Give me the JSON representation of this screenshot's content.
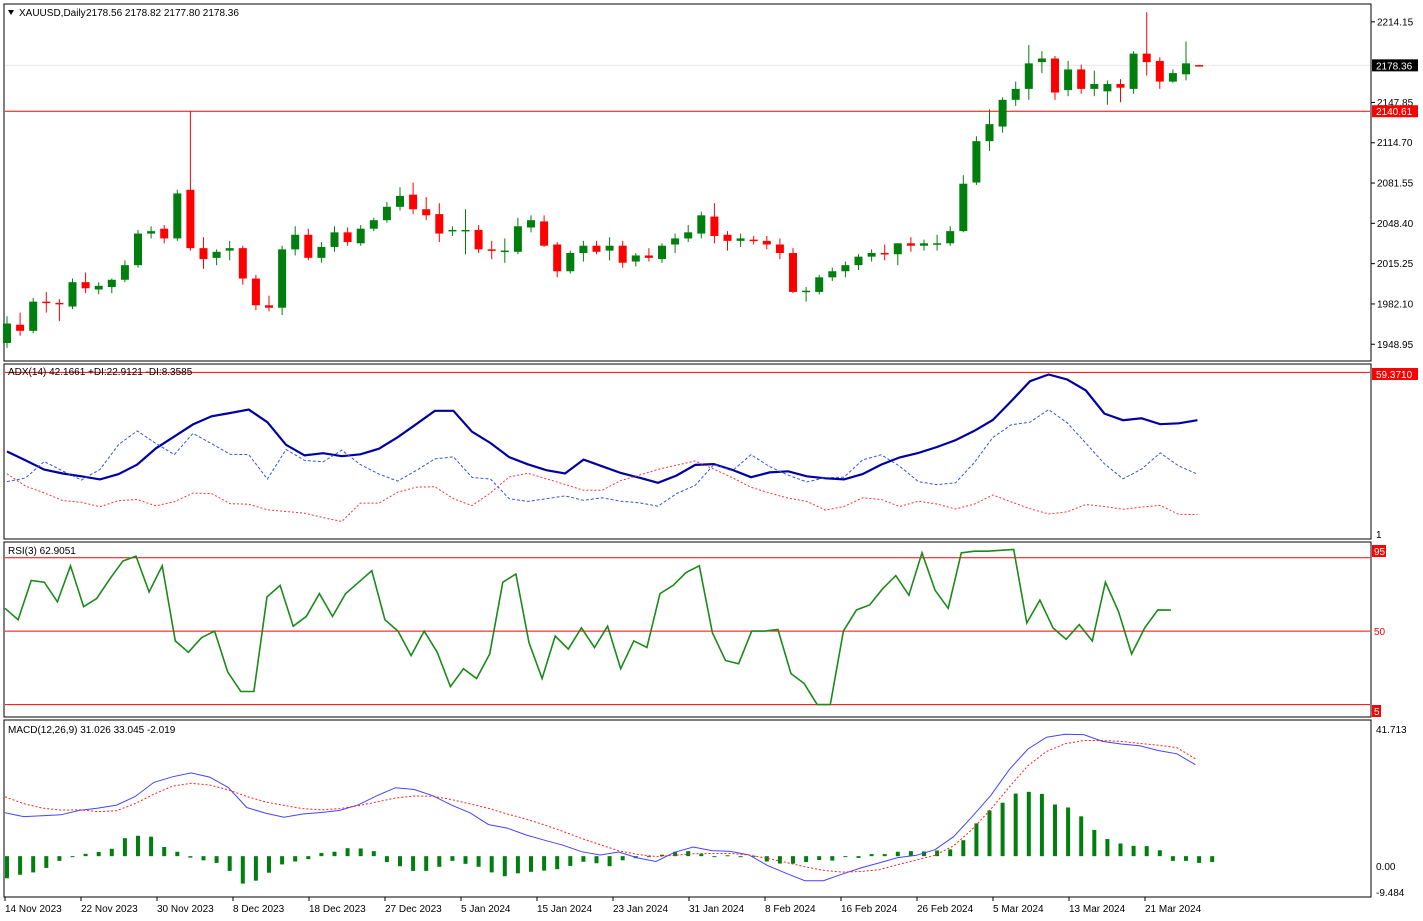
{
  "colors": {
    "bull": "#007f0e",
    "bear": "#ff0000",
    "adx": "#0000a0",
    "plus_di": "#3355dd",
    "minus_di": "#ff3333",
    "rsi": "#1a8a1a",
    "macd_line": "#4444ff",
    "signal": "#ff2020",
    "hist": "#007f0e",
    "level_line": "#ff0000",
    "frame": "#000000",
    "price_badge_bg": "#000000",
    "level_badge_bg": "#ff0000"
  },
  "chart_data": [
    {
      "type": "candlestick",
      "title": "XAUUSD,Daily",
      "ohlc_header": "2178.56 2178.82 2177.80 2178.36",
      "symbol": "XAUUSD",
      "timeframe": "Daily",
      "x_tick_labels": [
        "14 Nov 2023",
        "22 Nov 2023",
        "30 Nov 2023",
        "8 Dec 2023",
        "18 Dec 2023",
        "27 Dec 2023",
        "5 Jan 2024",
        "15 Jan 2024",
        "23 Jan 2024",
        "31 Jan 2024",
        "8 Feb 2024",
        "16 Feb 2024",
        "26 Feb 2024",
        "5 Mar 2024",
        "13 Mar 2024",
        "21 Mar 2024"
      ],
      "y_tick_labels": [
        "2214.15",
        "2147.85",
        "2114.70",
        "2081.55",
        "2048.40",
        "2015.25",
        "1982.10",
        "1948.95"
      ],
      "ylim": [
        1936,
        2228
      ],
      "current_price_label": "2178.36",
      "current_price": 2178.36,
      "horizontal_level_label": "2140.61",
      "horizontal_level": 2140.61,
      "ohlc": [
        [
          1950.0,
          1972.0,
          1946.0,
          1966.0
        ],
        [
          1965.0,
          1975.0,
          1956.0,
          1960.0
        ],
        [
          1960.0,
          1987.0,
          1958.0,
          1984.0
        ],
        [
          1984.0,
          1992.0,
          1975.0,
          1983.0
        ],
        [
          1983.0,
          1986.0,
          1968.0,
          1982.0
        ],
        [
          1980.0,
          2003.0,
          1978.0,
          2000.0
        ],
        [
          2000.0,
          2008.0,
          1991.0,
          1995.0
        ],
        [
          1994.0,
          2000.0,
          1990.0,
          1997.0
        ],
        [
          1996.0,
          2003.0,
          1991.0,
          2002.0
        ],
        [
          2002.0,
          2018.0,
          2000.0,
          2014.0
        ],
        [
          2014.0,
          2043.0,
          2012.0,
          2040.0
        ],
        [
          2040.0,
          2046.0,
          2036.0,
          2042.0
        ],
        [
          2044.0,
          2047.0,
          2032.0,
          2036.0
        ],
        [
          2036.0,
          2076.0,
          2034.0,
          2073.0
        ],
        [
          2076.0,
          2140.6,
          2026.0,
          2028.0
        ],
        [
          2028.0,
          2037.0,
          2011.0,
          2019.0
        ],
        [
          2020.0,
          2027.0,
          2014.0,
          2025.0
        ],
        [
          2026.0,
          2034.0,
          2018.0,
          2028.0
        ],
        [
          2028.0,
          2030.0,
          1998.0,
          2003.0
        ],
        [
          2003.0,
          2006.0,
          1977.0,
          1981.0
        ],
        [
          1981.0,
          1989.0,
          1976.0,
          1979.0
        ],
        [
          1979.0,
          2030.0,
          1973.0,
          2027.0
        ],
        [
          2027.0,
          2046.0,
          2022.0,
          2039.0
        ],
        [
          2039.0,
          2044.0,
          2018.0,
          2020.0
        ],
        [
          2020.0,
          2033.0,
          2016.0,
          2029.0
        ],
        [
          2029.0,
          2046.0,
          2025.0,
          2041.0
        ],
        [
          2041.0,
          2045.0,
          2030.0,
          2033.0
        ],
        [
          2032.0,
          2047.0,
          2030.0,
          2044.0
        ],
        [
          2044.0,
          2053.0,
          2042.0,
          2051.0
        ],
        [
          2051.0,
          2066.0,
          2049.0,
          2062.0
        ],
        [
          2062.0,
          2078.0,
          2059.0,
          2071.0
        ],
        [
          2072.0,
          2082.0,
          2056.0,
          2060.0
        ],
        [
          2060.0,
          2070.0,
          2051.0,
          2055.0
        ],
        [
          2056.0,
          2065.0,
          2033.0,
          2040.0
        ],
        [
          2042.0,
          2046.0,
          2038.0,
          2043.0
        ],
        [
          2042.0,
          2060.0,
          2023.0,
          2043.0
        ],
        [
          2043.0,
          2047.0,
          2024.0,
          2027.0
        ],
        [
          2027.0,
          2034.0,
          2019.0,
          2026.0
        ],
        [
          2025.0,
          2036.0,
          2016.0,
          2026.0
        ],
        [
          2025.0,
          2053.0,
          2023.0,
          2046.0
        ],
        [
          2045.0,
          2055.0,
          2041.0,
          2051.0
        ],
        [
          2050.0,
          2055.0,
          2029.0,
          2030.0
        ],
        [
          2031.0,
          2033.0,
          2004.0,
          2009.0
        ],
        [
          2009.0,
          2026.0,
          2007.0,
          2024.0
        ],
        [
          2024.0,
          2034.0,
          2017.0,
          2030.0
        ],
        [
          2030.0,
          2034.0,
          2023.0,
          2025.0
        ],
        [
          2026.0,
          2037.0,
          2018.0,
          2030.0
        ],
        [
          2030.0,
          2034.0,
          2012.0,
          2016.0
        ],
        [
          2017.0,
          2024.0,
          2013.0,
          2022.0
        ],
        [
          2022.0,
          2028.0,
          2017.0,
          2020.0
        ],
        [
          2019.0,
          2032.0,
          2016.0,
          2030.0
        ],
        [
          2031.0,
          2040.0,
          2024.0,
          2036.0
        ],
        [
          2036.0,
          2047.0,
          2033.0,
          2041.0
        ],
        [
          2040.0,
          2058.0,
          2036.0,
          2055.0
        ],
        [
          2054.0,
          2065.0,
          2032.0,
          2038.0
        ],
        [
          2039.0,
          2042.0,
          2026.0,
          2034.0
        ],
        [
          2034.0,
          2040.0,
          2029.0,
          2036.0
        ],
        [
          2035.0,
          2038.0,
          2031.0,
          2034.0
        ],
        [
          2034.0,
          2038.0,
          2027.0,
          2031.0
        ],
        [
          2031.0,
          2036.0,
          2019.0,
          2024.0
        ],
        [
          2024.0,
          2028.0,
          1991.0,
          1992.0
        ],
        [
          1992.0,
          1996.0,
          1984.0,
          1993.0
        ],
        [
          1992.0,
          2006.0,
          1990.0,
          2004.0
        ],
        [
          2004.0,
          2012.0,
          2001.0,
          2009.0
        ],
        [
          2009.0,
          2017.0,
          2004.0,
          2014.0
        ],
        [
          2014.0,
          2023.0,
          2010.0,
          2021.0
        ],
        [
          2021.0,
          2027.0,
          2017.0,
          2024.0
        ],
        [
          2024.0,
          2031.0,
          2018.0,
          2023.0
        ],
        [
          2023.0,
          2032.0,
          2014.0,
          2032.0
        ],
        [
          2032.0,
          2037.0,
          2025.0,
          2030.0
        ],
        [
          2030.0,
          2035.0,
          2026.0,
          2032.0
        ],
        [
          2031.0,
          2039.0,
          2026.0,
          2032.0
        ],
        [
          2032.0,
          2046.0,
          2030.0,
          2042.0
        ],
        [
          2042.0,
          2088.0,
          2041.0,
          2081.0
        ],
        [
          2082.0,
          2120.0,
          2080.0,
          2116.0
        ],
        [
          2116.0,
          2142.0,
          2108.0,
          2130.0
        ],
        [
          2128.0,
          2152.0,
          2123.0,
          2150.0
        ],
        [
          2150.0,
          2165.0,
          2145.0,
          2159.0
        ],
        [
          2159.0,
          2195.0,
          2150.0,
          2180.0
        ],
        [
          2181.0,
          2190.0,
          2172.0,
          2184.0
        ],
        [
          2184.0,
          2186.0,
          2150.0,
          2156.0
        ],
        [
          2158.0,
          2182.0,
          2153.0,
          2175.0
        ],
        [
          2175.0,
          2179.0,
          2155.0,
          2159.0
        ],
        [
          2159.0,
          2174.0,
          2153.0,
          2163.0
        ],
        [
          2157.0,
          2166.0,
          2146.0,
          2163.0
        ],
        [
          2163.0,
          2167.0,
          2148.0,
          2160.0
        ],
        [
          2159.0,
          2190.0,
          2155.0,
          2188.0
        ],
        [
          2188.0,
          2222.0,
          2170.0,
          2181.0
        ],
        [
          2182.0,
          2185.0,
          2159.0,
          2165.0
        ],
        [
          2165.0,
          2175.0,
          2164.0,
          2172.0
        ],
        [
          2171.0,
          2198.0,
          2166.0,
          2180.0
        ],
        [
          2178.6,
          2178.8,
          2177.8,
          2178.4
        ]
      ]
    },
    {
      "type": "line",
      "title": "ADX(14) 42.1661 +DI:22.9121 -DI:8.3585",
      "ylim": [
        0,
        62
      ],
      "y_tick_labels": [
        "59.3710",
        "1"
      ],
      "level": 59.371,
      "series": [
        {
          "name": "ADX",
          "values": [
            31,
            27.8,
            24.5,
            23.1,
            22.1,
            21,
            22.9,
            26.3,
            32.1,
            36.4,
            40.7,
            43.6,
            44.8,
            46,
            41.5,
            33.4,
            29.6,
            30.4,
            29.3,
            30,
            32,
            36.1,
            40.8,
            45.6,
            45.6,
            38.1,
            34,
            29,
            26.4,
            24.3,
            23.1,
            28.1,
            25.7,
            23.3,
            21.6,
            19.8,
            22.4,
            26.2,
            26.5,
            24.4,
            21.8,
            23.5,
            23.9,
            22.1,
            21.4,
            21,
            22.9,
            26.3,
            28.9,
            30.5,
            32.6,
            35.1,
            38.4,
            42.3,
            49.1,
            56.2,
            58.6,
            56.8,
            52.9,
            44.6,
            42.2,
            42.9,
            40.8,
            41.1,
            42.2
          ]
        },
        {
          "name": "+DI",
          "values": [
            20.2,
            21.5,
            27.4,
            24,
            20.8,
            24.6,
            33.5,
            38.4,
            33.9,
            29.9,
            37.5,
            33.8,
            30,
            29.9,
            21.1,
            31.7,
            27.8,
            27.3,
            31.5,
            26.3,
            22.9,
            20.4,
            24.2,
            28.3,
            29.1,
            21.7,
            21.1,
            14.1,
            13.1,
            14.1,
            15.1,
            13.5,
            14.4,
            13.2,
            12.6,
            11.4,
            15.9,
            18.9,
            26.3,
            24.1,
            29.9,
            25.6,
            22.5,
            20.1,
            21.6,
            21.8,
            28,
            29.8,
            25.7,
            20.2,
            19.1,
            19.8,
            27,
            36,
            40.6,
            41.5,
            46,
            41.3,
            34,
            26.6,
            21.2,
            24.7,
            30.5,
            25.8,
            22.9
          ]
        },
        {
          "name": "-DI",
          "values": [
            23,
            18.6,
            16.2,
            13.4,
            12.8,
            11.2,
            13.4,
            13.8,
            11.5,
            13,
            16.1,
            15.9,
            12.3,
            12.1,
            10.1,
            9.5,
            8.9,
            7.3,
            5.9,
            12.5,
            12.5,
            16.4,
            18.2,
            18.4,
            14.1,
            11.6,
            16.2,
            21.9,
            23.2,
            21.2,
            19.2,
            17.1,
            17.1,
            20.6,
            22.5,
            24.6,
            26.1,
            27.6,
            24.7,
            21.6,
            18.2,
            16.1,
            14.3,
            13.1,
            10,
            11.3,
            14.4,
            13.8,
            11.3,
            13.2,
            12.2,
            10.4,
            12.1,
            15.4,
            12.9,
            10.5,
            8.6,
            9.4,
            12,
            11.3,
            10.3,
            11.1,
            11.7,
            8.5,
            8.4
          ]
        }
      ]
    },
    {
      "type": "line",
      "title": "RSI(3) 62.9051",
      "ylim": [
        -2,
        104
      ],
      "y_tick_labels": [
        "95",
        "50",
        "5"
      ],
      "levels": [
        95,
        50,
        5
      ],
      "series": [
        {
          "name": "RSI",
          "values": [
            64,
            57,
            81,
            80,
            68,
            90,
            65,
            70,
            82,
            93,
            96,
            74,
            90,
            44,
            37,
            46,
            50,
            25,
            13,
            13,
            71,
            78,
            53,
            59,
            73,
            59,
            73,
            80,
            87,
            57,
            50,
            35,
            50,
            37,
            16,
            27,
            21,
            36,
            80,
            85,
            43,
            21,
            47,
            39,
            52,
            40,
            53,
            27,
            44,
            40,
            73,
            78,
            86,
            90,
            49,
            32,
            30,
            50,
            50,
            51,
            24,
            18,
            5,
            5,
            50,
            63,
            66,
            76,
            84,
            72,
            98,
            75,
            64,
            98,
            99,
            99,
            99.5,
            100,
            55,
            69,
            52,
            45,
            54,
            44,
            80,
            62,
            36,
            52,
            63,
            62.9
          ]
        }
      ]
    },
    {
      "type": "bar",
      "title": "MACD(12,26,9) 31.026 33.045 -2.019",
      "ylim": [
        -13.5,
        45.8
      ],
      "y_tick_labels": [
        "41.713",
        "0.00",
        "-9.484"
      ],
      "series": [
        {
          "name": "MACD",
          "values": [
            14.7,
            13.4,
            13.7,
            14,
            15.5,
            16.3,
            17.3,
            20.2,
            25,
            26.9,
            28.2,
            26.8,
            23.3,
            16.5,
            14.6,
            13.2,
            14.3,
            14.8,
            15.5,
            17.4,
            20.5,
            23.2,
            22.6,
            20.5,
            17.3,
            14.7,
            10.7,
            9.5,
            7.2,
            5.4,
            3.7,
            1.5,
            0.4,
            1.4,
            -0.6,
            -1.8,
            1.3,
            3.1,
            1.9,
            1.6,
            0.4,
            -3.2,
            -5.8,
            -8.3,
            -8.3,
            -6.1,
            -4,
            -2.3,
            -0.5,
            0.3,
            2.2,
            6.6,
            13.4,
            20.6,
            29.4,
            36.3,
            40.3,
            41.3,
            41.2,
            38.9,
            38,
            37.4,
            35.8,
            34.7,
            31
          ]
        },
        {
          "name": "Signal",
          "values": [
            20.1,
            17.8,
            16.3,
            15.6,
            15.7,
            15.1,
            15.4,
            17.8,
            21,
            23.7,
            24.7,
            24.1,
            22.5,
            20.2,
            18.4,
            17.2,
            16.1,
            15.7,
            16.1,
            17.1,
            18.4,
            19.7,
            20.4,
            20.3,
            19.2,
            17.7,
            16.2,
            14.3,
            12.6,
            10.6,
            8.4,
            6,
            3.9,
            1.8,
            0.6,
            -0.1,
            0.3,
            0.8,
            0.9,
            0.9,
            0.4,
            -0.8,
            -2.1,
            -3.6,
            -4.8,
            -5.4,
            -5.2,
            -4.6,
            -2.9,
            -1.3,
            0.3,
            3.5,
            9.1,
            15.9,
            23.5,
            30.7,
            35.5,
            38.1,
            39.2,
            39.2,
            38.9,
            38.2,
            37.6,
            36.8,
            33
          ]
        },
        {
          "name": "Histogram",
          "values": [
            -7.5,
            -6.3,
            -5.5,
            -4,
            -1.6,
            -0.2,
            0.8,
            1.4,
            2.5,
            6.1,
            6.9,
            6.6,
            3.1,
            1.5,
            -0.5,
            -1.4,
            -2.3,
            -5,
            -9.3,
            -8.3,
            -5.6,
            -2.8,
            -1.8,
            -1,
            1.1,
            1.5,
            2.7,
            2.6,
            1.7,
            -2,
            -3.4,
            -5,
            -5,
            -3.6,
            -1.6,
            -2.6,
            -3.6,
            -5.5,
            -6.8,
            -5.8,
            -5.3,
            -4.9,
            -4.4,
            -3.3,
            -1.9,
            -2.4,
            -3.4,
            -1.4,
            -0.7,
            0,
            0.5,
            1.5,
            1.7,
            0.8,
            -0.1,
            0.3,
            0,
            0.1,
            -1.8,
            -2.5,
            -2.5,
            -2,
            -1.3,
            -1.5,
            -0.3,
            -0.6,
            0.7,
            0.7,
            1.5,
            1.7,
            1.6,
            1.9,
            2.3,
            5.4,
            11.1,
            15.5,
            18.1,
            21.2,
            21.8,
            21.1,
            17.5,
            16.5,
            13.5,
            8.9,
            5.8,
            4.3,
            3.5,
            3.4,
            2,
            -1.6,
            -1.6,
            -2.3,
            -2
          ]
        }
      ]
    }
  ]
}
